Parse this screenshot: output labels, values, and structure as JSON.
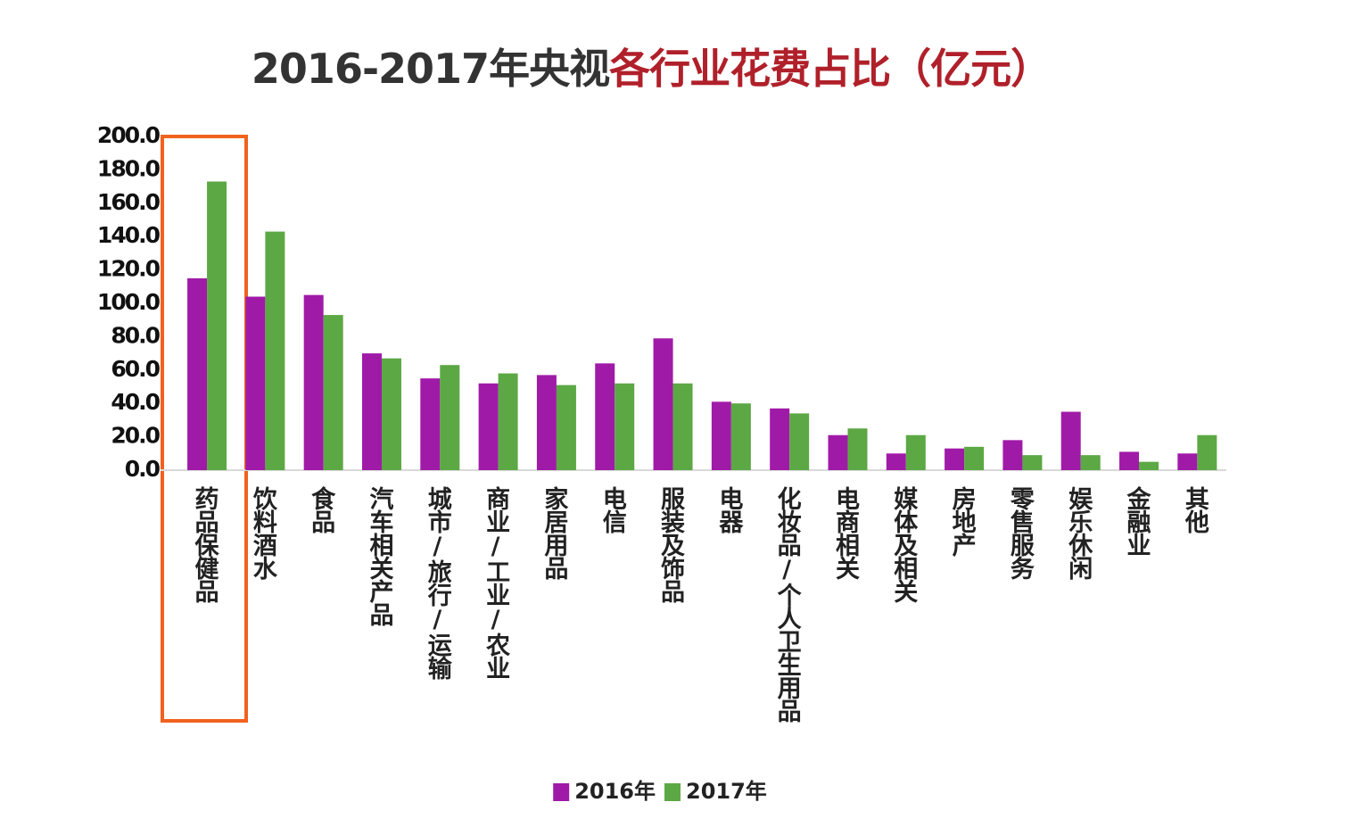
{
  "chart_data": {
    "type": "bar",
    "title": [
      "2016-2017年央视",
      "各行业花费占比（亿元）"
    ],
    "title_colors": [
      "#333333",
      "#b0202a"
    ],
    "categories": [
      "药品保健品",
      "饮料酒水",
      "食品",
      "汽车相关产品",
      "城市/旅行/运输",
      "商业/工业/农业",
      "家居用品",
      "电信",
      "服装及饰品",
      "电器",
      "化妆品/个人卫生用品",
      "电商相关",
      "媒体及相关",
      "房地产",
      "零售服务",
      "娱乐休闲",
      "金融业",
      "其他"
    ],
    "series": [
      {
        "name": "2016年",
        "color": "#a01aa8",
        "values": [
          115,
          104,
          105,
          70,
          55,
          52,
          57,
          64,
          79,
          41,
          37,
          21,
          10,
          13,
          18,
          35,
          11,
          10
        ]
      },
      {
        "name": "2017年",
        "color": "#5ca844",
        "values": [
          173,
          143,
          93,
          67,
          63,
          58,
          51,
          52,
          52,
          40,
          34,
          25,
          21,
          14,
          9,
          9,
          5,
          21
        ]
      }
    ],
    "ylim": [
      0,
      200
    ],
    "yticks": [
      {
        "value": 0,
        "label": "0.0"
      },
      {
        "value": 20,
        "label": "20.0"
      },
      {
        "value": 40,
        "label": "40.0"
      },
      {
        "value": 60,
        "label": "60.0"
      },
      {
        "value": 80,
        "label": "80.0"
      },
      {
        "value": 100,
        "label": "100.0"
      },
      {
        "value": 120,
        "label": "120.0"
      },
      {
        "value": 140,
        "label": "140.0"
      },
      {
        "value": 160,
        "label": "160.0"
      },
      {
        "value": 180,
        "label": "180.0"
      },
      {
        "value": 200,
        "label": "200.0"
      }
    ],
    "grid": false,
    "legend": "bottom"
  }
}
